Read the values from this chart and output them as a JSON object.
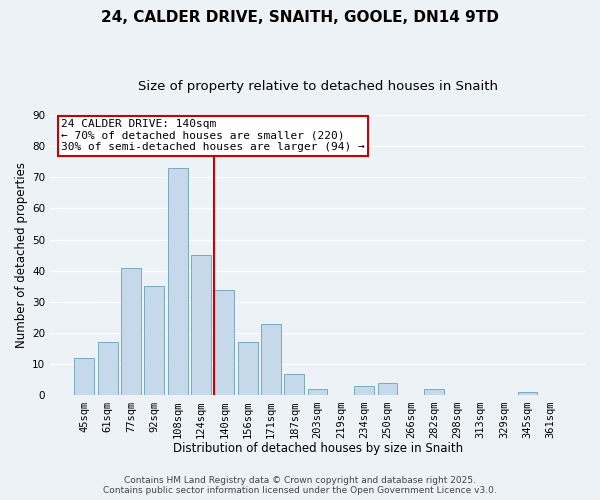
{
  "title": "24, CALDER DRIVE, SNAITH, GOOLE, DN14 9TD",
  "subtitle": "Size of property relative to detached houses in Snaith",
  "xlabel": "Distribution of detached houses by size in Snaith",
  "ylabel": "Number of detached properties",
  "categories": [
    "45sqm",
    "61sqm",
    "77sqm",
    "92sqm",
    "108sqm",
    "124sqm",
    "140sqm",
    "156sqm",
    "171sqm",
    "187sqm",
    "203sqm",
    "219sqm",
    "234sqm",
    "250sqm",
    "266sqm",
    "282sqm",
    "298sqm",
    "313sqm",
    "329sqm",
    "345sqm",
    "361sqm"
  ],
  "values": [
    12,
    17,
    41,
    35,
    73,
    45,
    34,
    17,
    23,
    7,
    2,
    0,
    3,
    4,
    0,
    2,
    0,
    0,
    0,
    1,
    0
  ],
  "bar_color": "#c6d9ea",
  "bar_edge_color": "#7aaabf",
  "vline_color": "#cc0000",
  "ylim": [
    0,
    90
  ],
  "yticks": [
    0,
    10,
    20,
    30,
    40,
    50,
    60,
    70,
    80,
    90
  ],
  "annotation_title": "24 CALDER DRIVE: 140sqm",
  "annotation_line1": "← 70% of detached houses are smaller (220)",
  "annotation_line2": "30% of semi-detached houses are larger (94) →",
  "annotation_box_color": "#ffffff",
  "annotation_box_edge": "#cc0000",
  "footer_line1": "Contains HM Land Registry data © Crown copyright and database right 2025.",
  "footer_line2": "Contains public sector information licensed under the Open Government Licence v3.0.",
  "background_color": "#edf2f7",
  "grid_color": "#ffffff",
  "title_fontsize": 11,
  "subtitle_fontsize": 9.5,
  "axis_label_fontsize": 8.5,
  "tick_fontsize": 7.5,
  "annotation_fontsize": 8,
  "footer_fontsize": 6.5
}
